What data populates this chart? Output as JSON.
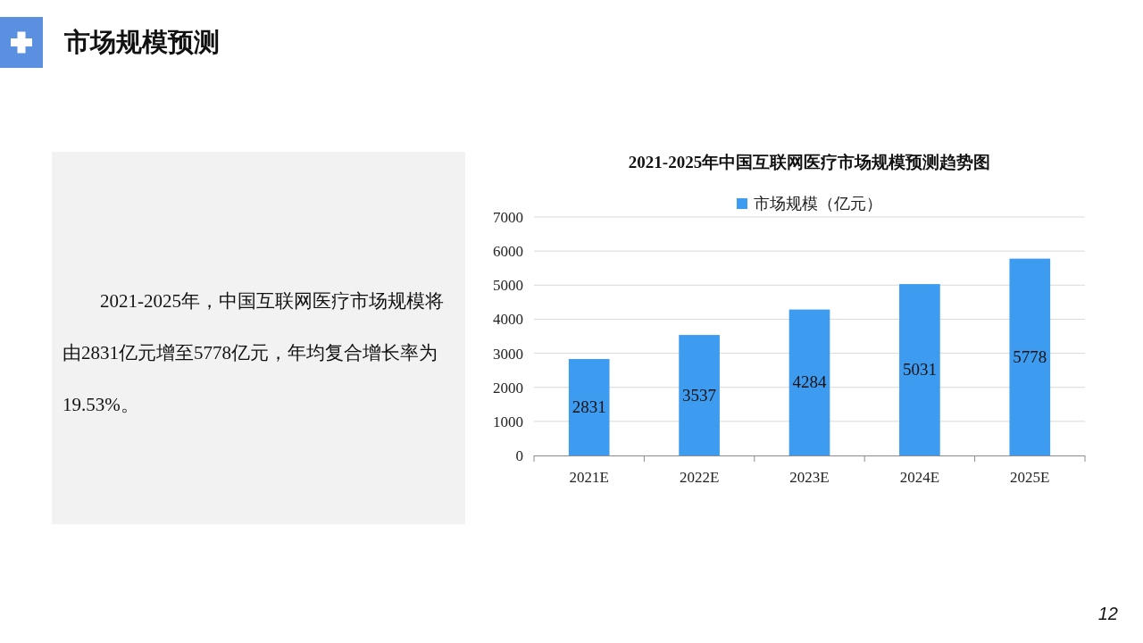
{
  "chart_data": [
    {
      "type": "other",
      "title": "市场规模预测",
      "annotations": [
        "2021-2025年，中国互联网医疗市场规模将由2831亿元增至5778亿元，年均复合增长率为19.53%。",
        "12"
      ]
    },
    {
      "type": "bar",
      "title": "2021-2025年中国互联网医疗市场规模预测趋势图",
      "categories": [
        "2021E",
        "2022E",
        "2023E",
        "2024E",
        "2025E"
      ],
      "series": [
        {
          "name": "市场规模（亿元）",
          "color": "#3d9cf0",
          "values": [
            2831,
            3537,
            4284,
            5031,
            5778
          ]
        }
      ],
      "ylim": [
        0,
        7000
      ],
      "yticks": [
        0,
        1000,
        2000,
        3000,
        4000,
        5000,
        6000,
        7000
      ],
      "grid": "y",
      "legend": "top",
      "data_labels": true
    }
  ]
}
